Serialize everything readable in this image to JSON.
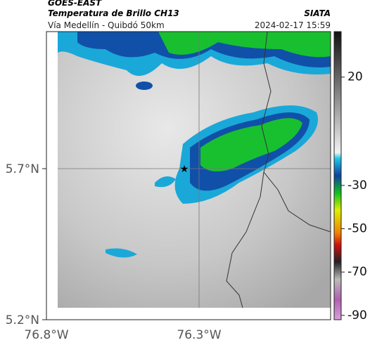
{
  "header": {
    "title": "GOES-EAST",
    "subtitle": "Temperatura de Brillo CH13",
    "source": "SIATA",
    "location": "Vía Medellín - Quibdó 50km",
    "datetime": "2024-02-17 15:59"
  },
  "map": {
    "ylabels": [
      "5.7°N",
      "5.2°N"
    ],
    "xlabels": [
      "76.8°W",
      "76.3°W"
    ]
  },
  "colorbar": {
    "lim": [
      -92,
      41
    ],
    "ticks": [
      20,
      -30,
      -50,
      -70,
      -90
    ]
  }
}
